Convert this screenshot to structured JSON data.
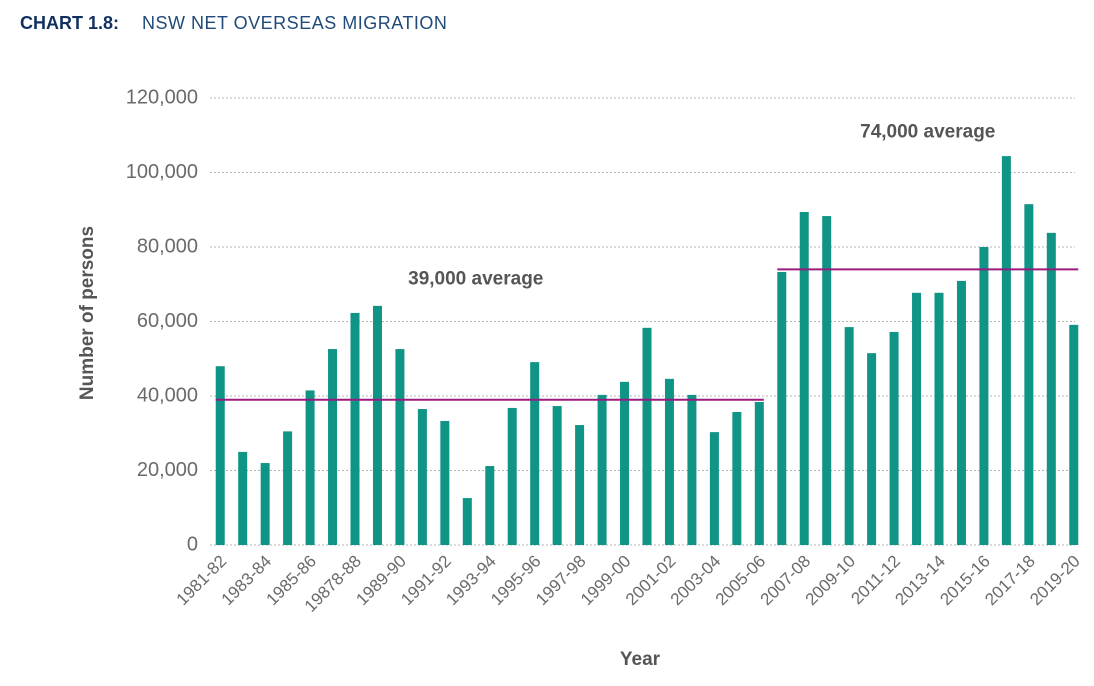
{
  "chart_data": {
    "type": "bar",
    "title_prefix": "CHART 1.8:",
    "title": "NSW NET OVERSEAS MIGRATION",
    "x_label": "Year",
    "y_label": "Number of persons",
    "categories": [
      "1981-82",
      null,
      "1983-84",
      null,
      "1985-86",
      null,
      "19878-88",
      null,
      "1989-90",
      null,
      "1991-92",
      null,
      "1993-94",
      null,
      "1995-96",
      null,
      "1997-98",
      null,
      "1999-00",
      null,
      "2001-02",
      null,
      "2003-04",
      null,
      "2005-06",
      null,
      "2007-08",
      null,
      "2009-10",
      null,
      "2011-12",
      null,
      "2013-14",
      null,
      "2015-16",
      null,
      "2017-18",
      null,
      "2019-20"
    ],
    "values": [
      48000,
      25000,
      22000,
      30500,
      41500,
      52600,
      62300,
      64200,
      52600,
      36500,
      33300,
      12600,
      21200,
      36800,
      49100,
      37300,
      32200,
      40300,
      43800,
      58300,
      44600,
      40300,
      30300,
      35700,
      38400,
      73300,
      89400,
      88300,
      58500,
      51500,
      57200,
      67700,
      67700,
      70900,
      80000,
      104400,
      91500,
      83800,
      59100
    ],
    "color": "#0f9485",
    "ylim": [
      0,
      120000
    ],
    "yticks": [
      0,
      {
        "value": 20000,
        "label": "20,000"
      },
      {
        "value": 40000,
        "label": "40,000"
      },
      {
        "value": 60000,
        "label": "60,000"
      },
      {
        "value": 80000,
        "label": "80,000"
      },
      {
        "value": 100000,
        "label": "100,000"
      },
      {
        "value": 120000,
        "label": "120,000"
      }
    ],
    "grid": true,
    "averages": [
      {
        "label": "39,000 average",
        "value": 39000,
        "end": "2005-06",
        "color": "#9b1b7d"
      },
      {
        "label": "74,000 average",
        "value": 74000,
        "end": "2019-20",
        "color": "#9b1b7d"
      }
    ]
  }
}
